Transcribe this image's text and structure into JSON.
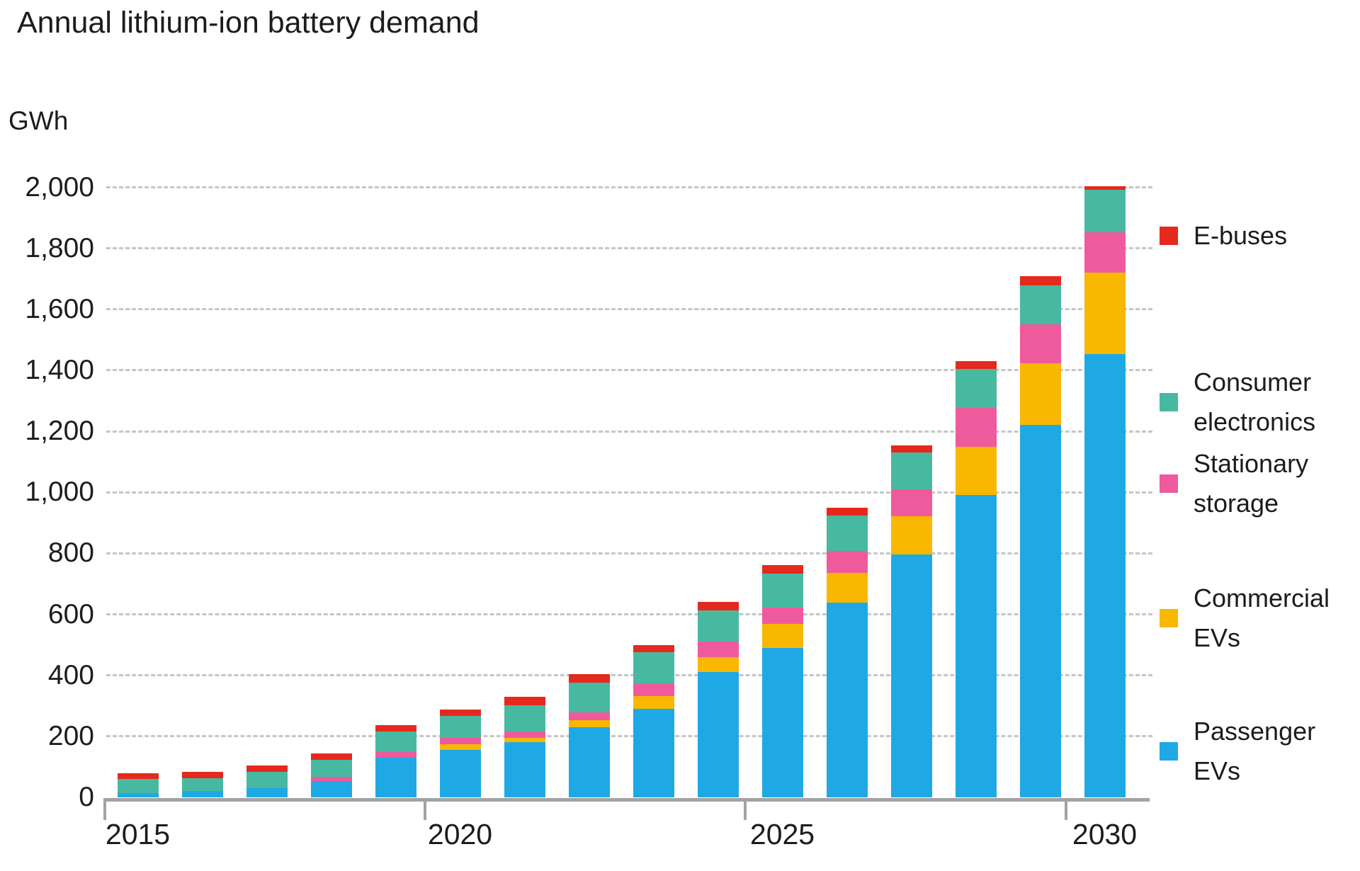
{
  "title": "Annual lithium-ion battery demand",
  "y_axis": {
    "unit_label": "GWh",
    "min": 0,
    "max": 2000,
    "step": 200,
    "tick_labels": [
      "0",
      "200",
      "400",
      "600",
      "800",
      "1,000",
      "1,200",
      "1,400",
      "1,600",
      "1,800",
      "2,000"
    ]
  },
  "x_axis": {
    "labels": [
      "2015",
      "2020",
      "2025",
      "2030"
    ]
  },
  "legend": [
    {
      "id": "e-buses",
      "label": "E-buses",
      "color": "#e5291d"
    },
    {
      "id": "consumer-electronics",
      "label": "Consumer electronics",
      "color": "#48b9a1"
    },
    {
      "id": "stationary-storage",
      "label": "Stationary storage",
      "color": "#ef5a9d"
    },
    {
      "id": "commercial-evs",
      "label": "Commercial EVs",
      "color": "#f9b700"
    },
    {
      "id": "passenger-evs",
      "label": "Passenger EVs",
      "color": "#1fa9e4"
    }
  ],
  "chart_data": {
    "type": "bar",
    "stacked": true,
    "title": "Annual lithium-ion battery demand",
    "ylabel": "GWh",
    "ylim": [
      0,
      2000
    ],
    "grid": "horizontal-dashed",
    "legend_position": "right",
    "categories": [
      2015,
      2016,
      2017,
      2018,
      2019,
      2020,
      2021,
      2022,
      2023,
      2024,
      2025,
      2026,
      2027,
      2028,
      2029,
      2030
    ],
    "series": [
      {
        "name": "Passenger EVs",
        "color": "#1fa9e4",
        "values": [
          15,
          21,
          31,
          54,
          131,
          155,
          180,
          230,
          290,
          410,
          491,
          638,
          797,
          991,
          1222,
          1454
        ]
      },
      {
        "name": "Commercial EVs",
        "color": "#f9b700",
        "values": [
          0,
          0,
          0,
          0,
          0,
          18,
          16,
          22,
          43,
          50,
          77,
          97,
          125,
          159,
          201,
          267
        ]
      },
      {
        "name": "Stationary storage",
        "color": "#ef5a9d",
        "values": [
          0,
          0,
          0,
          13,
          17,
          21,
          19,
          27,
          42,
          50,
          54,
          73,
          89,
          126,
          128,
          132
        ]
      },
      {
        "name": "Consumer electronics",
        "color": "#48b9a1",
        "values": [
          45,
          41,
          52,
          56,
          68,
          74,
          87,
          97,
          101,
          104,
          112,
          115,
          120,
          129,
          128,
          139
        ]
      },
      {
        "name": "E-buses",
        "color": "#e5291d",
        "values": [
          18,
          21,
          22,
          21,
          21,
          19,
          27,
          27,
          23,
          27,
          27,
          26,
          23,
          26,
          29,
          12
        ]
      }
    ],
    "totals": [
      78,
      83,
      105,
      144,
      237,
      287,
      329,
      403,
      499,
      641,
      761,
      949,
      1154,
      1431,
      1708,
      2004
    ]
  }
}
